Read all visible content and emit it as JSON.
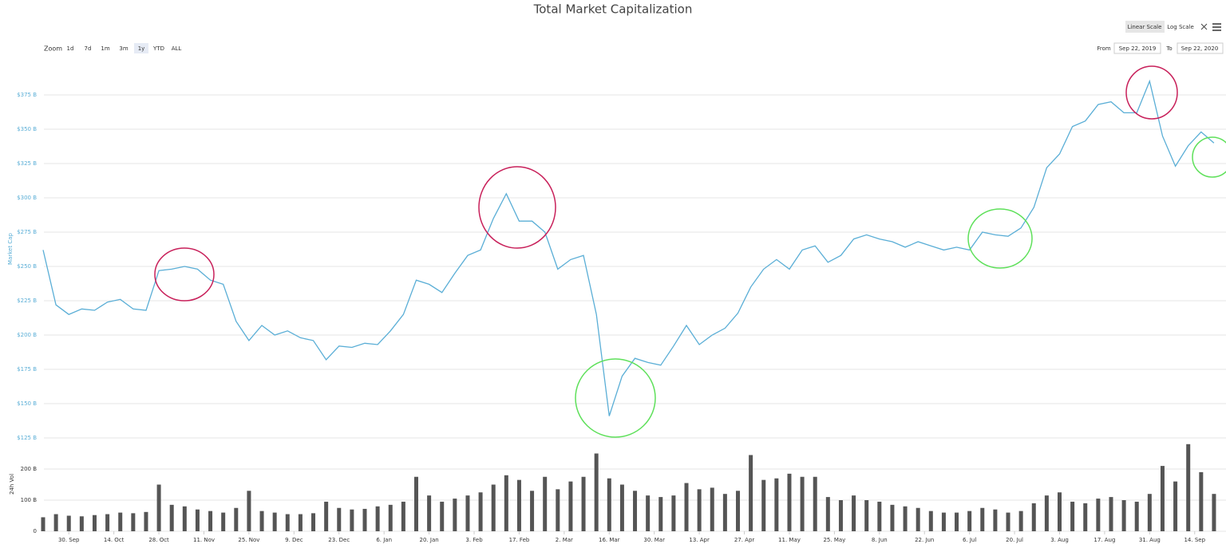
{
  "controls": {
    "zoom_label": "Zoom",
    "zoom_buttons": [
      "1d",
      "7d",
      "1m",
      "3m",
      "1y",
      "YTD",
      "ALL"
    ],
    "scale_buttons": [
      "Linear Scale",
      "Log Scale"
    ],
    "from_label": "From",
    "from_value": "Sep 22, 2019",
    "to_label": "To",
    "to_value": "Sep 22, 2020"
  },
  "chart_data": [
    {
      "type": "line",
      "title": "Total Market Capitalization",
      "y_label": "Market Cap",
      "color": "#5aaed6",
      "grid": true,
      "x": [
        "2019-09-22",
        "2019-09-26",
        "2019-09-30",
        "2019-10-04",
        "2019-10-08",
        "2019-10-12",
        "2019-10-16",
        "2019-10-20",
        "2019-10-24",
        "2019-10-28",
        "2019-11-01",
        "2019-11-05",
        "2019-11-09",
        "2019-11-13",
        "2019-11-17",
        "2019-11-21",
        "2019-11-25",
        "2019-11-29",
        "2019-12-03",
        "2019-12-07",
        "2019-12-11",
        "2019-12-15",
        "2019-12-19",
        "2019-12-23",
        "2019-12-27",
        "2019-12-31",
        "2020-01-04",
        "2020-01-08",
        "2020-01-12",
        "2020-01-16",
        "2020-01-20",
        "2020-01-24",
        "2020-01-28",
        "2020-02-01",
        "2020-02-05",
        "2020-02-09",
        "2020-02-13",
        "2020-02-17",
        "2020-02-21",
        "2020-02-25",
        "2020-02-29",
        "2020-03-04",
        "2020-03-08",
        "2020-03-12",
        "2020-03-16",
        "2020-03-20",
        "2020-03-24",
        "2020-03-28",
        "2020-04-01",
        "2020-04-05",
        "2020-04-09",
        "2020-04-13",
        "2020-04-17",
        "2020-04-21",
        "2020-04-25",
        "2020-04-29",
        "2020-05-03",
        "2020-05-07",
        "2020-05-11",
        "2020-05-15",
        "2020-05-19",
        "2020-05-23",
        "2020-05-27",
        "2020-05-31",
        "2020-06-04",
        "2020-06-08",
        "2020-06-12",
        "2020-06-16",
        "2020-06-20",
        "2020-06-24",
        "2020-06-28",
        "2020-07-02",
        "2020-07-06",
        "2020-07-10",
        "2020-07-14",
        "2020-07-18",
        "2020-07-22",
        "2020-07-26",
        "2020-07-30",
        "2020-08-03",
        "2020-08-07",
        "2020-08-11",
        "2020-08-15",
        "2020-08-19",
        "2020-08-23",
        "2020-08-27",
        "2020-08-31",
        "2020-09-04",
        "2020-09-08",
        "2020-09-12",
        "2020-09-16",
        "2020-09-20"
      ],
      "values": [
        262,
        222,
        215,
        219,
        218,
        224,
        226,
        219,
        218,
        247,
        248,
        250,
        248,
        240,
        237,
        210,
        196,
        207,
        200,
        203,
        198,
        196,
        182,
        192,
        191,
        194,
        193,
        203,
        215,
        240,
        237,
        231,
        245,
        258,
        262,
        285,
        303,
        283,
        283,
        275,
        248,
        255,
        258,
        215,
        141,
        170,
        183,
        180,
        178,
        192,
        207,
        193,
        200,
        205,
        216,
        235,
        248,
        255,
        248,
        262,
        265,
        253,
        258,
        270,
        273,
        270,
        268,
        264,
        268,
        265,
        262,
        264,
        262,
        275,
        273,
        272,
        278,
        293,
        322,
        332,
        352,
        356,
        368,
        370,
        362,
        362,
        385,
        345,
        323,
        338,
        348,
        340
      ],
      "xlim": [
        "2019-09-22",
        "2020-09-22"
      ],
      "ylim": [
        125,
        400
      ],
      "yticks": [
        {
          "value": 125,
          "label": "$125 B"
        },
        {
          "value": 150,
          "label": "$150 B"
        },
        {
          "value": 175,
          "label": "$175 B"
        },
        {
          "value": 200,
          "label": "$200 B"
        },
        {
          "value": 225,
          "label": "$225 B"
        },
        {
          "value": 250,
          "label": "$250 B"
        },
        {
          "value": 275,
          "label": "$275 B"
        },
        {
          "value": 300,
          "label": "$300 B"
        },
        {
          "value": 325,
          "label": "$325 B"
        },
        {
          "value": 350,
          "label": "$350 B"
        },
        {
          "value": 375,
          "label": "$375 B"
        }
      ]
    },
    {
      "type": "bar",
      "y_label": "24h Vol",
      "color": "#555555",
      "grid": true,
      "x": [
        "2019-09-22",
        "2019-09-26",
        "2019-09-30",
        "2019-10-04",
        "2019-10-08",
        "2019-10-12",
        "2019-10-16",
        "2019-10-20",
        "2019-10-24",
        "2019-10-28",
        "2019-11-01",
        "2019-11-05",
        "2019-11-09",
        "2019-11-13",
        "2019-11-17",
        "2019-11-21",
        "2019-11-25",
        "2019-11-29",
        "2019-12-03",
        "2019-12-07",
        "2019-12-11",
        "2019-12-15",
        "2019-12-19",
        "2019-12-23",
        "2019-12-27",
        "2019-12-31",
        "2020-01-04",
        "2020-01-08",
        "2020-01-12",
        "2020-01-16",
        "2020-01-20",
        "2020-01-24",
        "2020-01-28",
        "2020-02-01",
        "2020-02-05",
        "2020-02-09",
        "2020-02-13",
        "2020-02-17",
        "2020-02-21",
        "2020-02-25",
        "2020-02-29",
        "2020-03-04",
        "2020-03-08",
        "2020-03-12",
        "2020-03-16",
        "2020-03-20",
        "2020-03-24",
        "2020-03-28",
        "2020-04-01",
        "2020-04-05",
        "2020-04-09",
        "2020-04-13",
        "2020-04-17",
        "2020-04-21",
        "2020-04-25",
        "2020-04-29",
        "2020-05-03",
        "2020-05-07",
        "2020-05-11",
        "2020-05-15",
        "2020-05-19",
        "2020-05-23",
        "2020-05-27",
        "2020-05-31",
        "2020-06-04",
        "2020-06-08",
        "2020-06-12",
        "2020-06-16",
        "2020-06-20",
        "2020-06-24",
        "2020-06-28",
        "2020-07-02",
        "2020-07-06",
        "2020-07-10",
        "2020-07-14",
        "2020-07-18",
        "2020-07-22",
        "2020-07-26",
        "2020-07-30",
        "2020-08-03",
        "2020-08-07",
        "2020-08-11",
        "2020-08-15",
        "2020-08-19",
        "2020-08-23",
        "2020-08-27",
        "2020-08-31",
        "2020-09-04",
        "2020-09-08",
        "2020-09-12",
        "2020-09-16",
        "2020-09-20"
      ],
      "values": [
        45,
        55,
        50,
        48,
        52,
        55,
        60,
        58,
        62,
        150,
        85,
        80,
        70,
        65,
        60,
        75,
        130,
        65,
        60,
        55,
        55,
        58,
        95,
        75,
        70,
        72,
        80,
        85,
        95,
        175,
        115,
        95,
        105,
        115,
        125,
        150,
        180,
        165,
        130,
        175,
        135,
        160,
        175,
        250,
        170,
        150,
        130,
        115,
        110,
        115,
        155,
        135,
        140,
        120,
        130,
        245,
        165,
        170,
        185,
        175,
        175,
        110,
        100,
        115,
        100,
        95,
        85,
        80,
        75,
        65,
        60,
        60,
        65,
        75,
        70,
        60,
        65,
        90,
        115,
        125,
        95,
        90,
        105,
        110,
        100,
        95,
        120,
        210,
        160,
        280,
        190,
        120
      ],
      "xlim": [
        "2019-09-22",
        "2020-09-22"
      ],
      "ylim": [
        0,
        300
      ],
      "yticks": [
        0,
        {
          "value": 100,
          "label": "100 B"
        },
        {
          "value": 200,
          "label": "200 B"
        }
      ],
      "xticks": [
        {
          "value": "2019-09-30",
          "label": "30. Sep"
        },
        {
          "value": "2019-10-14",
          "label": "14. Oct"
        },
        {
          "value": "2019-10-28",
          "label": "28. Oct"
        },
        {
          "value": "2019-11-11",
          "label": "11. Nov"
        },
        {
          "value": "2019-11-25",
          "label": "25. Nov"
        },
        {
          "value": "2019-12-09",
          "label": "9. Dec"
        },
        {
          "value": "2019-12-23",
          "label": "23. Dec"
        },
        {
          "value": "2020-01-06",
          "label": "6. Jan"
        },
        {
          "value": "2020-01-20",
          "label": "20. Jan"
        },
        {
          "value": "2020-02-03",
          "label": "3. Feb"
        },
        {
          "value": "2020-02-17",
          "label": "17. Feb"
        },
        {
          "value": "2020-03-02",
          "label": "2. Mar"
        },
        {
          "value": "2020-03-16",
          "label": "16. Mar"
        },
        {
          "value": "2020-03-30",
          "label": "30. Mar"
        },
        {
          "value": "2020-04-13",
          "label": "13. Apr"
        },
        {
          "value": "2020-04-27",
          "label": "27. Apr"
        },
        {
          "value": "2020-05-11",
          "label": "11. May"
        },
        {
          "value": "2020-05-25",
          "label": "25. May"
        },
        {
          "value": "2020-06-08",
          "label": "8. Jun"
        },
        {
          "value": "2020-06-22",
          "label": "22. Jun"
        },
        {
          "value": "2020-07-06",
          "label": "6. Jul"
        },
        {
          "value": "2020-07-20",
          "label": "20. Jul"
        },
        {
          "value": "2020-08-03",
          "label": "3. Aug"
        },
        {
          "value": "2020-08-17",
          "label": "17. Aug"
        },
        {
          "value": "2020-08-31",
          "label": "31. Aug"
        },
        {
          "value": "2020-09-14",
          "label": "14. Sep"
        }
      ]
    }
  ]
}
